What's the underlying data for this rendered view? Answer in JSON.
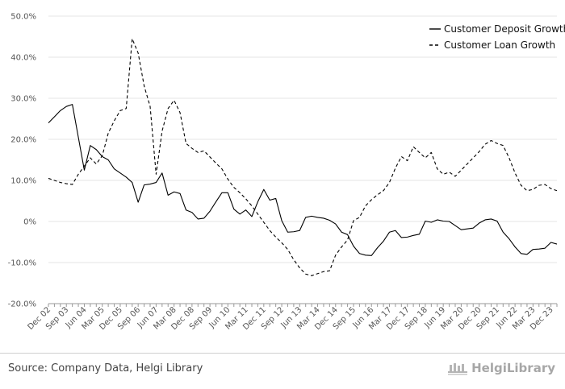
{
  "chart_data": {
    "type": "line",
    "y_ticks": [
      "50.0%",
      "40.0%",
      "30.0%",
      "20.0%",
      "10.0%",
      "0%",
      "-10.0%",
      "-20.0%"
    ],
    "ylim": [
      -20,
      50
    ],
    "x_ticks": [
      "Dec 02",
      "Sep 03",
      "Jun 04",
      "Mar 05",
      "Dec 05",
      "Sep 06",
      "Jun 07",
      "Mar 08",
      "Dec 08",
      "Sep 09",
      "Jun 10",
      "Mar 11",
      "Dec 11",
      "Sep 12",
      "Jun 13",
      "Mar 14",
      "Dec 14",
      "Sep 15",
      "Jun 16",
      "Mar 17",
      "Dec 17",
      "Sep 18",
      "Jun 19",
      "Mar 20",
      "Dec 20",
      "Sep 21",
      "Jun 22",
      "Mar 23",
      "Dec 23"
    ],
    "grid": "horizontal",
    "legend_position": "top-right",
    "series": [
      {
        "name": "Customer Deposit Growth",
        "style": "solid",
        "color": "#000000",
        "values": [
          24.0,
          25.5,
          27.0,
          28.0,
          28.5,
          20.5,
          12.5,
          18.5,
          17.5,
          15.8,
          15.0,
          12.8,
          11.8,
          10.8,
          9.5,
          4.7,
          8.9,
          9.1,
          9.5,
          11.8,
          6.4,
          7.2,
          6.8,
          2.8,
          2.2,
          0.6,
          0.8,
          2.5,
          4.8,
          7.0,
          7.0,
          3.0,
          1.8,
          2.8,
          1.2,
          4.8,
          7.8,
          5.2,
          5.6,
          0.2,
          -2.6,
          -2.5,
          -2.2,
          1.0,
          1.3,
          1.0,
          0.8,
          0.3,
          -0.6,
          -2.6,
          -3.2,
          -6.0,
          -7.8,
          -8.2,
          -8.3,
          -6.4,
          -4.8,
          -2.6,
          -2.2,
          -3.9,
          -3.8,
          -3.4,
          -3.1,
          0.1,
          -0.2,
          0.4,
          0.1,
          0.0,
          -1.0,
          -2.0,
          -1.8,
          -1.6,
          -0.4,
          0.4,
          0.6,
          0.1,
          -2.6,
          -4.2,
          -6.2,
          -7.8,
          -8.0,
          -6.8,
          -6.7,
          -6.5,
          -5.1,
          -5.5
        ]
      },
      {
        "name": "Customer Loan Growth",
        "style": "dashed",
        "color": "#000000",
        "values": [
          10.5,
          10.0,
          9.5,
          9.2,
          9.0,
          11.5,
          13.5,
          15.5,
          14.0,
          16.0,
          21.5,
          24.5,
          27.0,
          27.5,
          44.5,
          41.0,
          33.0,
          28.0,
          11.5,
          22.0,
          27.5,
          29.5,
          26.5,
          19.0,
          17.8,
          16.8,
          17.2,
          15.7,
          14.2,
          12.8,
          10.3,
          8.3,
          7.0,
          5.5,
          3.8,
          1.8,
          -0.2,
          -2.2,
          -3.8,
          -5.2,
          -6.8,
          -9.3,
          -11.3,
          -12.8,
          -13.2,
          -12.7,
          -12.2,
          -12.0,
          -8.2,
          -6.2,
          -4.5,
          0.2,
          1.0,
          3.8,
          5.3,
          6.5,
          7.5,
          9.5,
          13.0,
          15.8,
          14.8,
          18.2,
          16.8,
          15.5,
          16.8,
          12.8,
          11.5,
          12.0,
          11.0,
          12.5,
          14.0,
          15.5,
          17.0,
          18.8,
          19.7,
          19.0,
          18.5,
          15.5,
          11.8,
          8.8,
          7.5,
          7.8,
          8.8,
          9.0,
          8.0,
          7.5
        ]
      }
    ]
  },
  "footer": {
    "source": "Source: Company Data, Helgi Library",
    "brand": "HelgiLibrary"
  }
}
